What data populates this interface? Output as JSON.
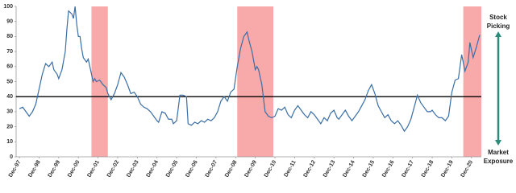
{
  "chart_data": {
    "type": "line",
    "x": [
      "1997-12",
      "1998-02",
      "1998-04",
      "1998-06",
      "1998-08",
      "1998-10",
      "1998-12",
      "1999-02",
      "1999-04",
      "1999-06",
      "1999-08",
      "1999-09",
      "1999-11",
      "1999-12",
      "2000-02",
      "2000-04",
      "2000-05",
      "2000-06",
      "2000-07",
      "2000-08",
      "2000-09",
      "2000-10",
      "2000-11",
      "2000-12",
      "2001-01",
      "2001-02",
      "2001-03",
      "2001-05",
      "2001-06",
      "2001-07",
      "2001-08",
      "2001-09",
      "2001-10",
      "2001-11",
      "2002-01",
      "2002-03",
      "2002-05",
      "2002-06",
      "2002-08",
      "2002-10",
      "2002-12",
      "2003-02",
      "2003-04",
      "2003-06",
      "2003-08",
      "2003-10",
      "2003-12",
      "2004-02",
      "2004-04",
      "2004-06",
      "2004-08",
      "2004-10",
      "2004-12",
      "2005-01",
      "2005-03",
      "2005-05",
      "2005-07",
      "2005-09",
      "2005-10",
      "2005-12",
      "2006-02",
      "2006-04",
      "2006-06",
      "2006-07",
      "2006-09",
      "2006-11",
      "2007-01",
      "2007-03",
      "2007-05",
      "2007-07",
      "2007-09",
      "2007-11",
      "2008-01",
      "2008-03",
      "2008-05",
      "2008-07",
      "2008-09",
      "2008-11",
      "2009-01",
      "2009-03",
      "2009-05",
      "2009-07",
      "2009-08",
      "2009-10",
      "2009-12",
      "2010-01",
      "2010-02",
      "2010-04",
      "2010-06",
      "2010-08",
      "2010-10",
      "2010-12",
      "2011-02",
      "2011-04",
      "2011-06",
      "2011-08",
      "2011-10",
      "2011-12",
      "2012-02",
      "2012-04",
      "2012-06",
      "2012-08",
      "2012-10",
      "2012-12",
      "2013-02",
      "2013-04",
      "2013-06",
      "2013-08",
      "2013-10",
      "2013-12",
      "2014-02",
      "2014-03",
      "2014-05",
      "2014-07",
      "2014-09",
      "2014-11",
      "2015-01",
      "2015-03",
      "2015-05",
      "2015-07",
      "2015-09",
      "2015-11",
      "2016-01",
      "2016-03",
      "2016-05",
      "2016-07",
      "2016-09",
      "2016-11",
      "2017-01",
      "2017-03",
      "2017-05",
      "2017-07",
      "2017-09",
      "2017-11",
      "2018-01",
      "2018-03",
      "2018-05",
      "2018-07",
      "2018-09",
      "2018-11",
      "2018-12",
      "2019-02",
      "2019-04",
      "2019-06",
      "2019-08",
      "2019-10",
      "2019-12",
      "2020-02",
      "2020-04",
      "2020-06",
      "2020-08",
      "2020-10",
      "2020-11",
      "2021-01",
      "2021-03",
      "2021-05"
    ],
    "series": [
      {
        "color": "#3a6ea5",
        "values": [
          32,
          33,
          30,
          27,
          30,
          35,
          45,
          55,
          62,
          60,
          63,
          58,
          55,
          52,
          58,
          70,
          85,
          97,
          96,
          95,
          92,
          100,
          88,
          80,
          80,
          72,
          66,
          63,
          65,
          60,
          55,
          50,
          52,
          50,
          51,
          48,
          46,
          42,
          38,
          42,
          48,
          56,
          53,
          48,
          42,
          43,
          40,
          35,
          33,
          32,
          30,
          27,
          24,
          23,
          30,
          29,
          25,
          25,
          22,
          24,
          41,
          41,
          40,
          22,
          21,
          23,
          22,
          24,
          23,
          25,
          24,
          26,
          30,
          37,
          40,
          37,
          43,
          45,
          60,
          72,
          80,
          83,
          78,
          70,
          58,
          60,
          58,
          48,
          30,
          27,
          26,
          27,
          32,
          31,
          33,
          28,
          26,
          31,
          34,
          31,
          28,
          26,
          30,
          28,
          25,
          22,
          26,
          24,
          29,
          31,
          26,
          25,
          28,
          31,
          27,
          24,
          27,
          30,
          34,
          38,
          44,
          48,
          42,
          34,
          30,
          26,
          28,
          24,
          22,
          24,
          21,
          17,
          20,
          25,
          33,
          41,
          36,
          33,
          30,
          30,
          31,
          28,
          26,
          26,
          24,
          27,
          43,
          51,
          52,
          68,
          57,
          63,
          76,
          66,
          73,
          81
        ]
      }
    ],
    "xlim": [
      "1997-10",
      "2021-06"
    ],
    "xticks": [
      {
        "value": "1997-12",
        "label": "Dec-97"
      },
      {
        "value": "1998-12",
        "label": "Dec-98"
      },
      {
        "value": "1999-12",
        "label": "Dec-99"
      },
      {
        "value": "2000-12",
        "label": "Dec-00"
      },
      {
        "value": "2001-12",
        "label": "Dec-01"
      },
      {
        "value": "2002-12",
        "label": "Dec-02"
      },
      {
        "value": "2003-12",
        "label": "Dec-03"
      },
      {
        "value": "2004-12",
        "label": "Dec-04"
      },
      {
        "value": "2005-12",
        "label": "Dec-05"
      },
      {
        "value": "2006-12",
        "label": "Dec-06"
      },
      {
        "value": "2007-12",
        "label": "Dec-07"
      },
      {
        "value": "2008-12",
        "label": "Dec-08"
      },
      {
        "value": "2009-12",
        "label": "Dec-09"
      },
      {
        "value": "2010-12",
        "label": "Dec-10"
      },
      {
        "value": "2011-12",
        "label": "Dec-11"
      },
      {
        "value": "2012-12",
        "label": "Dec-12"
      },
      {
        "value": "2013-12",
        "label": "Dec-13"
      },
      {
        "value": "2014-12",
        "label": "Dec-14"
      },
      {
        "value": "2015-12",
        "label": "Dec-15"
      },
      {
        "value": "2016-12",
        "label": "Dec-16"
      },
      {
        "value": "2017-12",
        "label": "Dec-17"
      },
      {
        "value": "2018-12",
        "label": "Dec-18"
      },
      {
        "value": "2019-12",
        "label": "Dec-19"
      },
      {
        "value": "2020-12",
        "label": "Dec-20"
      }
    ],
    "ylim": [
      0,
      100
    ],
    "yticks": [
      0,
      10,
      20,
      30,
      40,
      50,
      60,
      70,
      80,
      90,
      100
    ],
    "grid": false,
    "reference_line": {
      "value": 40,
      "color": "#000000"
    },
    "shaded_regions": [
      [
        "2001-08",
        "2002-06"
      ],
      [
        "2009-01",
        "2010-11"
      ],
      [
        "2020-07",
        "2021-06"
      ]
    ],
    "shade_color": "#f79a9a",
    "annotations": {
      "top": [
        "Stock",
        "Picking"
      ],
      "bottom": [
        "Market",
        "Exposure"
      ],
      "arrow_color": "#2e8b7a"
    }
  }
}
